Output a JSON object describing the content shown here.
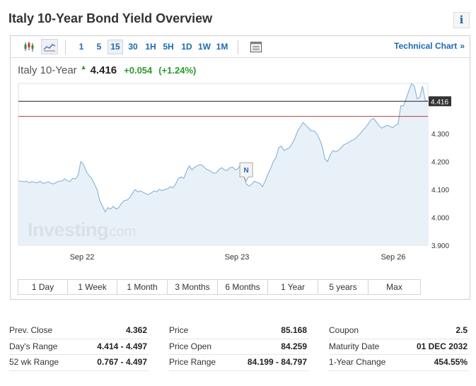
{
  "page": {
    "title": "Italy 10-Year Bond Yield Overview",
    "info_label": "i"
  },
  "toolbar": {
    "timeframes": [
      {
        "label": "1",
        "active": false
      },
      {
        "label": "5",
        "active": false
      },
      {
        "label": "15",
        "active": true
      },
      {
        "label": "30",
        "active": false
      },
      {
        "label": "1H",
        "active": false
      },
      {
        "label": "5H",
        "active": false
      },
      {
        "label": "1D",
        "active": false
      },
      {
        "label": "1W",
        "active": false
      },
      {
        "label": "1M",
        "active": false
      }
    ],
    "icons": [
      "candlestick-icon",
      "area-chart-icon",
      "calendar-icon"
    ],
    "technical_chart": "Technical Chart",
    "technical_chevron": "»"
  },
  "quote": {
    "name": "Italy 10-Year",
    "arrow": "▲",
    "price": "4.416",
    "change": "+0.054",
    "change_pct": "(+1.24%)"
  },
  "chart_data": {
    "type": "area",
    "x_tick_labels": [
      "Sep 22",
      "Sep 23",
      "Sep 26"
    ],
    "y_tick_labels": [
      "4.300",
      "4.200",
      "4.100",
      "4.000",
      "3.900"
    ],
    "ylim": [
      3.9,
      4.48
    ],
    "current_price_label": "4.416",
    "current_price": 4.416,
    "prev_close_line": 4.362,
    "watermark": "Investing",
    "watermark_suffix": ".com",
    "marker_label": "N",
    "marker_index": 84,
    "series": [
      {
        "values": [
          4.13,
          4.13,
          4.128,
          4.13,
          4.124,
          4.128,
          4.126,
          4.124,
          4.13,
          4.122,
          4.124,
          4.128,
          4.122,
          4.12,
          4.126,
          4.13,
          4.13,
          4.138,
          4.132,
          4.128,
          4.14,
          4.138,
          4.15,
          4.2,
          4.19,
          4.165,
          4.15,
          4.14,
          4.12,
          4.1,
          4.06,
          4.04,
          4.02,
          4.035,
          4.03,
          4.04,
          4.03,
          4.035,
          4.05,
          4.06,
          4.062,
          4.07,
          4.085,
          4.1,
          4.092,
          4.095,
          4.09,
          4.085,
          4.082,
          4.088,
          4.095,
          4.092,
          4.1,
          4.096,
          4.1,
          4.102,
          4.11,
          4.106,
          4.12,
          4.14,
          4.145,
          4.14,
          4.165,
          4.185,
          4.17,
          4.18,
          4.185,
          4.19,
          4.185,
          4.175,
          4.17,
          4.165,
          4.158,
          4.16,
          4.172,
          4.178,
          4.17,
          4.168,
          4.178,
          4.18,
          4.17,
          4.175,
          4.19,
          4.15,
          4.12,
          4.112,
          4.118,
          4.13,
          4.125,
          4.122,
          4.11,
          4.13,
          4.155,
          4.175,
          4.2,
          4.215,
          4.25,
          4.255,
          4.24,
          4.245,
          4.25,
          4.265,
          4.285,
          4.31,
          4.325,
          4.34,
          4.33,
          4.32,
          4.31,
          4.31,
          4.3,
          4.282,
          4.255,
          4.21,
          4.2,
          4.225,
          4.24,
          4.235,
          4.24,
          4.25,
          4.26,
          4.265,
          4.27,
          4.276,
          4.28,
          4.29,
          4.3,
          4.312,
          4.322,
          4.335,
          4.35,
          4.355,
          4.342,
          4.328,
          4.32,
          4.325,
          4.33,
          4.326,
          4.322,
          4.33,
          4.335,
          4.4,
          4.4,
          4.425,
          4.455,
          4.48,
          4.47,
          4.425,
          4.43,
          4.47,
          4.42,
          4.416
        ]
      }
    ]
  },
  "ranges": [
    "1 Day",
    "1 Week",
    "1 Month",
    "3 Months",
    "6 Months",
    "1 Year",
    "5 years",
    "Max"
  ],
  "stats": {
    "col1": [
      {
        "label": "Prev. Close",
        "value": "4.362"
      },
      {
        "label": "Day's Range",
        "value": "4.414 - 4.497"
      },
      {
        "label": "52 wk Range",
        "value": "0.767 - 4.497"
      }
    ],
    "col2": [
      {
        "label": "Price",
        "value": "85.168"
      },
      {
        "label": "Price Open",
        "value": "84.259"
      },
      {
        "label": "Price Range",
        "value": "84.199 - 84.797"
      }
    ],
    "col3": [
      {
        "label": "Coupon",
        "value": "2.5"
      },
      {
        "label": "Maturity Date",
        "value": "01 DEC 2032"
      },
      {
        "label": "1-Year Change",
        "value": "454.55%"
      }
    ]
  },
  "colors": {
    "accent": "#1c6ab2",
    "positive": "#2b9a2b",
    "line": "#8fb6d9",
    "fill": "#e5eef7",
    "prev_close": "#b04040",
    "current_line": "#222222"
  }
}
